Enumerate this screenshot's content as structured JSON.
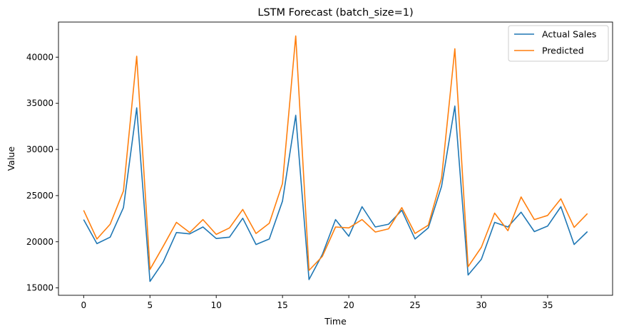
{
  "chart_data": {
    "type": "line",
    "title": "LSTM Forecast (batch_size=1)",
    "xlabel": "Time",
    "ylabel": "Value",
    "xlim": [
      -1.9,
      39.9
    ],
    "ylim": [
      14200,
      43800
    ],
    "xticks": [
      0,
      5,
      10,
      15,
      20,
      25,
      30,
      35
    ],
    "yticks": [
      15000,
      20000,
      25000,
      30000,
      35000,
      40000
    ],
    "grid": false,
    "legend_position": "top-right",
    "x": [
      0,
      1,
      2,
      3,
      4,
      5,
      6,
      7,
      8,
      9,
      10,
      11,
      12,
      13,
      14,
      15,
      16,
      17,
      18,
      19,
      20,
      21,
      22,
      23,
      24,
      25,
      26,
      27,
      28,
      29,
      30,
      31,
      32,
      33,
      34,
      35,
      36,
      37,
      38
    ],
    "series": [
      {
        "name": "Actual Sales",
        "color": "#1f77b4",
        "values": [
          22400,
          19800,
          20500,
          23700,
          34500,
          15700,
          17800,
          21000,
          20850,
          21600,
          20350,
          20500,
          22550,
          19700,
          20300,
          24400,
          33700,
          15900,
          18600,
          22400,
          20600,
          23800,
          21600,
          21900,
          23400,
          20300,
          21500,
          26000,
          34700,
          16400,
          18100,
          22100,
          21600,
          23200,
          21100,
          21700,
          23800,
          19700,
          21100
        ]
      },
      {
        "name": "Predicted",
        "color": "#ff7f0e",
        "values": [
          23400,
          20300,
          21900,
          25500,
          40100,
          17000,
          19500,
          22100,
          21000,
          22400,
          20800,
          21500,
          23500,
          20900,
          22000,
          26300,
          42300,
          16900,
          18400,
          21600,
          21500,
          22400,
          21050,
          21400,
          23700,
          20900,
          21800,
          26900,
          40900,
          17300,
          19400,
          23100,
          21200,
          24850,
          22400,
          22850,
          24650,
          21550,
          23050
        ]
      }
    ]
  }
}
